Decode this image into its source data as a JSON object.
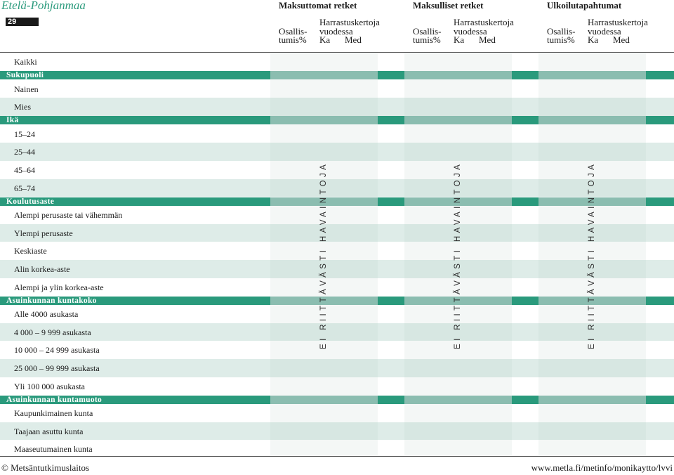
{
  "header": {
    "region": "Etelä-Pohjanmaa",
    "page_number": "29",
    "groups": [
      {
        "title": "Maksuttomat retket",
        "participation": [
          "Osallis-",
          "tumis%"
        ],
        "frequency": "Harrastuskertoja",
        "frequency2": "vuodessa",
        "ka": "Ka",
        "med": "Med"
      },
      {
        "title": "Maksulliset retket",
        "participation": [
          "Osallis-",
          "tumis%"
        ],
        "frequency": "Harrastuskertoja",
        "frequency2": "vuodessa",
        "ka": "Ka",
        "med": "Med"
      },
      {
        "title": "Ulkoilutapahtumat",
        "participation": [
          "Osallis-",
          "tumis%"
        ],
        "frequency": "Harrastuskertoja",
        "frequency2": "vuodessa",
        "ka": "Ka",
        "med": "Med"
      }
    ]
  },
  "rows": [
    {
      "type": "row",
      "label": "Kaikki"
    },
    {
      "type": "section",
      "label": "Sukupuoli"
    },
    {
      "type": "row",
      "label": "Nainen"
    },
    {
      "type": "row",
      "label": "Mies"
    },
    {
      "type": "section",
      "label": "Ikä"
    },
    {
      "type": "row",
      "label": "15–24"
    },
    {
      "type": "row",
      "label": "25–44"
    },
    {
      "type": "row",
      "label": "45–64"
    },
    {
      "type": "row",
      "label": "65–74"
    },
    {
      "type": "section",
      "label": "Koulutusaste"
    },
    {
      "type": "row",
      "label": "Alempi perusaste tai vähemmän"
    },
    {
      "type": "row",
      "label": "Ylempi perusaste"
    },
    {
      "type": "row",
      "label": "Keskiaste"
    },
    {
      "type": "row",
      "label": "Alin korkea-aste"
    },
    {
      "type": "row",
      "label": "Alempi ja ylin korkea-aste"
    },
    {
      "type": "section",
      "label": "Asuinkunnan kuntakoko"
    },
    {
      "type": "row",
      "label": "Alle 4000 asukasta"
    },
    {
      "type": "row",
      "label": "4 000 – 9 999 asukasta"
    },
    {
      "type": "row",
      "label": "10 000 – 24 999 asukasta"
    },
    {
      "type": "row",
      "label": "25 000 – 99 999 asukasta"
    },
    {
      "type": "row",
      "label": "Yli 100 000 asukasta"
    },
    {
      "type": "section",
      "label": "Asuinkunnan kuntamuoto"
    },
    {
      "type": "row",
      "label": "Kaupunkimainen kunta"
    },
    {
      "type": "row",
      "label": "Taajaan asuttu kunta"
    },
    {
      "type": "row",
      "label": "Maaseutumainen kunta"
    }
  ],
  "no_data_notice": "EI RIITTÄVÄSTI HAVAINTOJA",
  "footer": {
    "left": "© Metsäntutkimuslaitos",
    "right": "www.metla.fi/metinfo/monikaytto/lvvi"
  },
  "colors": {
    "accent": "#2a9a7c",
    "section_dark": "#2a9a7c",
    "section_light": "#8bbdb0",
    "row_band": "#dde9e6",
    "col_tint": "#f4f7f6"
  }
}
